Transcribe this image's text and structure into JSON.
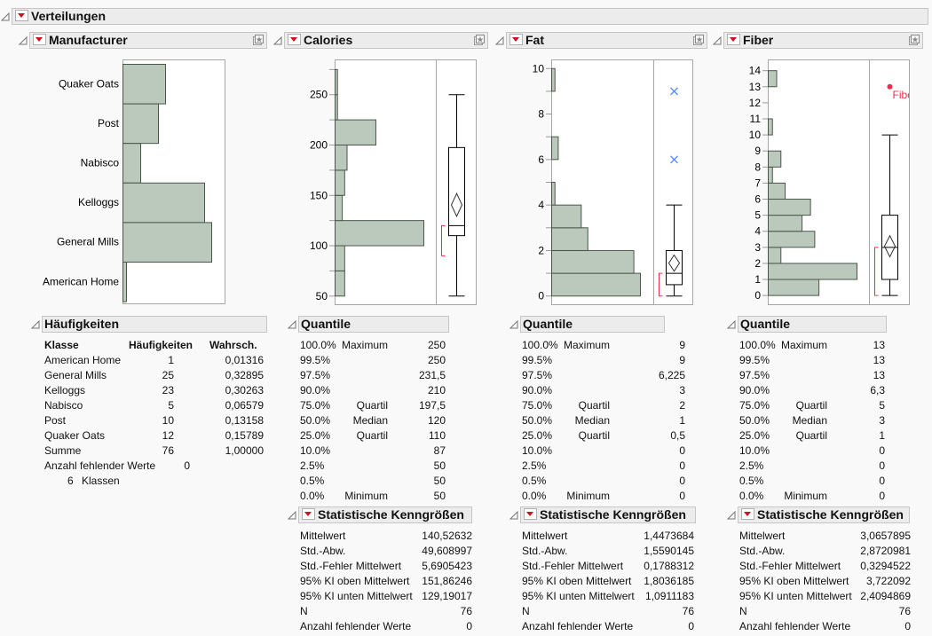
{
  "title": "Verteilungen",
  "colors": {
    "bar_fill": "#bac9bb",
    "bar_stroke": "#4a564a",
    "outlier_x": "#5b8ff9",
    "outlier_dot": "#e8304a",
    "shortest_half": "#e8304a",
    "header_bg": "#ececec"
  },
  "icons": {
    "disclosure": "disclosure-triangle-icon",
    "menu": "red-dropdown-menu-icon",
    "star": "star-frame-icon"
  },
  "manufacturer": {
    "title": "Manufacturer",
    "freq": {
      "title": "Häufigkeiten",
      "headers": [
        "Klasse",
        "Häufigkeiten",
        "Wahrsch."
      ],
      "rows": [
        [
          "American Home",
          "1",
          "0,01316"
        ],
        [
          "General Mills",
          "25",
          "0,32895"
        ],
        [
          "Kelloggs",
          "23",
          "0,30263"
        ],
        [
          "Nabisco",
          "5",
          "0,06579"
        ],
        [
          "Post",
          "10",
          "0,13158"
        ],
        [
          "Quaker Oats",
          "12",
          "0,15789"
        ],
        [
          "Summe",
          "76",
          "1,00000"
        ]
      ],
      "missing_label": "Anzahl fehlender Werte",
      "missing_value": "0",
      "classes_count": "6",
      "classes_label": "Klassen"
    }
  },
  "chart_data": [
    {
      "type": "bar",
      "orientation": "horizontal",
      "variable": "Manufacturer",
      "categories": [
        "Quaker Oats",
        "Post",
        "Nabisco",
        "Kelloggs",
        "General Mills",
        "American Home"
      ],
      "values": [
        12,
        10,
        5,
        23,
        25,
        1
      ]
    },
    {
      "type": "bar",
      "subtype": "histogram",
      "variable": "Calories",
      "ylim": [
        41,
        285
      ],
      "bin_width": 25,
      "bins_start": 50,
      "counts": [
        4,
        4,
        37,
        3,
        4,
        5,
        17,
        1,
        1
      ],
      "tick_labels": [
        50,
        100,
        150,
        200,
        250
      ],
      "minor_step": 25,
      "box": {
        "min": 50,
        "q1": 110,
        "median": 120,
        "q3": 197.5,
        "max": 250,
        "mean": 140.52632,
        "ci_low": 129.19017,
        "ci_high": 151.86246,
        "shortest_half": [
          90,
          120
        ]
      },
      "outliers": [],
      "outlier_marker": "x"
    },
    {
      "type": "bar",
      "subtype": "histogram",
      "variable": "Fat",
      "ylim": [
        -0.4,
        10.4
      ],
      "bin_width": 1,
      "bins_start": 0,
      "counts": [
        27,
        25,
        11,
        9,
        1,
        0,
        2,
        0,
        0,
        1
      ],
      "tick_labels": [
        0,
        2,
        4,
        6,
        8,
        10
      ],
      "minor_step": 1,
      "box": {
        "min": 0,
        "q1": 0.5,
        "median": 1,
        "q3": 2,
        "max": 4,
        "mean": 1.4473684,
        "ci_low": 1.0911183,
        "ci_high": 1.8036185,
        "shortest_half": [
          0,
          1
        ]
      },
      "outliers": [
        6,
        9
      ],
      "outlier_marker": "x"
    },
    {
      "type": "bar",
      "subtype": "histogram",
      "variable": "Fiber",
      "ylim": [
        -0.6,
        14.7
      ],
      "bin_width": 1,
      "bins_start": 0,
      "counts": [
        12,
        21,
        3,
        11,
        8,
        10,
        4,
        1,
        3,
        0,
        1,
        0,
        0,
        2
      ],
      "tick_labels": [
        0,
        1,
        2,
        3,
        4,
        5,
        6,
        7,
        8,
        9,
        10,
        11,
        12,
        13,
        14
      ],
      "minor_step": 1,
      "box": {
        "min": 0,
        "q1": 1,
        "median": 3,
        "q3": 5,
        "max": 10,
        "mean": 3.0657895,
        "ci_low": 2.4094869,
        "ci_high": 3.722092,
        "shortest_half": [
          0,
          3
        ]
      },
      "outliers": [
        13
      ],
      "outlier_marker": "dot",
      "outlier_label": "Fibe"
    }
  ],
  "variables": [
    {
      "title": "Calories",
      "quantile_title": "Quantile",
      "quantiles": [
        [
          "100.0%",
          "Maximum",
          "250"
        ],
        [
          "99.5%",
          "",
          "250"
        ],
        [
          "97.5%",
          "",
          "231,5"
        ],
        [
          "90.0%",
          "",
          "210"
        ],
        [
          "75.0%",
          "Quartil",
          "197,5"
        ],
        [
          "50.0%",
          "Median",
          "120"
        ],
        [
          "25.0%",
          "Quartil",
          "110"
        ],
        [
          "10.0%",
          "",
          "87"
        ],
        [
          "2.5%",
          "",
          "50"
        ],
        [
          "0.5%",
          "",
          "50"
        ],
        [
          "0.0%",
          "Minimum",
          "50"
        ]
      ],
      "stats_title": "Statistische Kenngrößen",
      "stats": [
        [
          "Mittelwert",
          "140,52632"
        ],
        [
          "Std.-Abw.",
          "49,608997"
        ],
        [
          "Std.-Fehler Mittelwert",
          "5,6905423"
        ],
        [
          "95% KI oben Mittelwert",
          "151,86246"
        ],
        [
          "95% KI unten Mittelwert",
          "129,19017"
        ],
        [
          "N",
          "76"
        ],
        [
          "Anzahl fehlender Werte",
          "0"
        ]
      ]
    },
    {
      "title": "Fat",
      "quantile_title": "Quantile",
      "quantiles": [
        [
          "100.0%",
          "Maximum",
          "9"
        ],
        [
          "99.5%",
          "",
          "9"
        ],
        [
          "97.5%",
          "",
          "6,225"
        ],
        [
          "90.0%",
          "",
          "3"
        ],
        [
          "75.0%",
          "Quartil",
          "2"
        ],
        [
          "50.0%",
          "Median",
          "1"
        ],
        [
          "25.0%",
          "Quartil",
          "0,5"
        ],
        [
          "10.0%",
          "",
          "0"
        ],
        [
          "2.5%",
          "",
          "0"
        ],
        [
          "0.5%",
          "",
          "0"
        ],
        [
          "0.0%",
          "Minimum",
          "0"
        ]
      ],
      "stats_title": "Statistische Kenngrößen",
      "stats": [
        [
          "Mittelwert",
          "1,4473684"
        ],
        [
          "Std.-Abw.",
          "1,5590145"
        ],
        [
          "Std.-Fehler Mittelwert",
          "0,1788312"
        ],
        [
          "95% KI oben Mittelwert",
          "1,8036185"
        ],
        [
          "95% KI unten Mittelwert",
          "1,0911183"
        ],
        [
          "N",
          "76"
        ],
        [
          "Anzahl fehlender Werte",
          "0"
        ]
      ]
    },
    {
      "title": "Fiber",
      "quantile_title": "Quantile",
      "quantiles": [
        [
          "100.0%",
          "Maximum",
          "13"
        ],
        [
          "99.5%",
          "",
          "13"
        ],
        [
          "97.5%",
          "",
          "13"
        ],
        [
          "90.0%",
          "",
          "6,3"
        ],
        [
          "75.0%",
          "Quartil",
          "5"
        ],
        [
          "50.0%",
          "Median",
          "3"
        ],
        [
          "25.0%",
          "Quartil",
          "1"
        ],
        [
          "10.0%",
          "",
          "0"
        ],
        [
          "2.5%",
          "",
          "0"
        ],
        [
          "0.5%",
          "",
          "0"
        ],
        [
          "0.0%",
          "Minimum",
          "0"
        ]
      ],
      "stats_title": "Statistische Kenngrößen",
      "stats": [
        [
          "Mittelwert",
          "3,0657895"
        ],
        [
          "Std.-Abw.",
          "2,8720981"
        ],
        [
          "Std.-Fehler Mittelwert",
          "0,3294522"
        ],
        [
          "95% KI oben Mittelwert",
          "3,722092"
        ],
        [
          "95% KI unten Mittelwert",
          "2,4094869"
        ],
        [
          "N",
          "76"
        ],
        [
          "Anzahl fehlender Werte",
          "0"
        ]
      ]
    }
  ]
}
